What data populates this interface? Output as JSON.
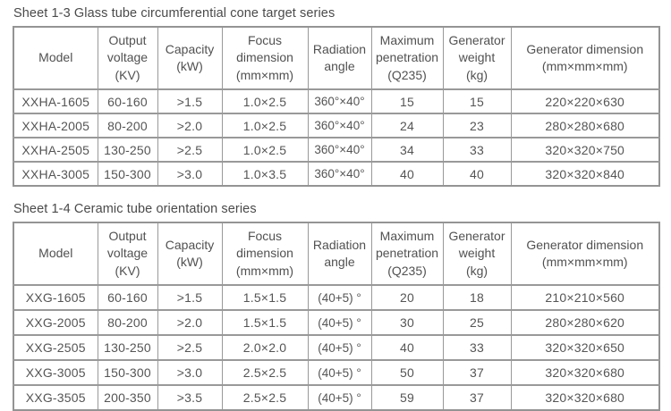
{
  "page": {
    "background": "#ffffff",
    "text_color": "#4f4f4f",
    "border_color": "#999999"
  },
  "tables": [
    {
      "title": "Sheet 1-3 Glass tube circumferential cone target series",
      "columns": [
        "Model",
        "Output\nvoltage\n(KV)",
        "Capacity\n(kW)",
        "Focus\ndimension\n(mm×mm)",
        "Radiation\nangle",
        "Maximum\npenetration\n(Q235)",
        "Generator\nweight\n(kg)",
        "Generator dimension\n(mm×mm×mm)"
      ],
      "rows": [
        [
          "XXHA-1605",
          "60-160",
          ">1.5",
          "1.0×2.5",
          "360°×40°",
          "15",
          "15",
          "220×220×630"
        ],
        [
          "XXHA-2005",
          "80-200",
          ">2.0",
          "1.0×2.5",
          "360°×40°",
          "24",
          "23",
          "280×280×680"
        ],
        [
          "XXHA-2505",
          "130-250",
          ">2.5",
          "1.0×2.5",
          "360°×40°",
          "34",
          "33",
          "320×320×750"
        ],
        [
          "XXHA-3005",
          "150-300",
          ">3.0",
          "1.0×3.5",
          "360°×40°",
          "40",
          "40",
          "320×320×840"
        ]
      ]
    },
    {
      "title": "Sheet 1-4 Ceramic tube orientation series",
      "columns": [
        "Model",
        "Output\nvoltage\n(KV)",
        "Capacity\n(kW)",
        "Focus\ndimension\n(mm×mm)",
        "Radiation\nangle",
        "Maximum\npenetration\n(Q235)",
        "Generator\nweight\n(kg)",
        "Generator dimension\n(mm×mm×mm)"
      ],
      "rows": [
        [
          "XXG-1605",
          "60-160",
          ">1.5",
          "1.5×1.5",
          "(40+5) °",
          "20",
          "18",
          "210×210×560"
        ],
        [
          "XXG-2005",
          "80-200",
          ">2.0",
          "1.5×1.5",
          "(40+5) °",
          "30",
          "25",
          "280×280×620"
        ],
        [
          "XXG-2505",
          "130-250",
          ">2.5",
          "2.0×2.0",
          "(40+5) °",
          "40",
          "33",
          "320×320×650"
        ],
        [
          "XXG-3005",
          "150-300",
          ">3.0",
          "2.5×2.5",
          "(40+5) °",
          "50",
          "37",
          "320×320×680"
        ],
        [
          "XXG-3505",
          "200-350",
          ">3.5",
          "2.5×2.5",
          "(40+5) °",
          "59",
          "37",
          "320×320×680"
        ]
      ]
    }
  ]
}
